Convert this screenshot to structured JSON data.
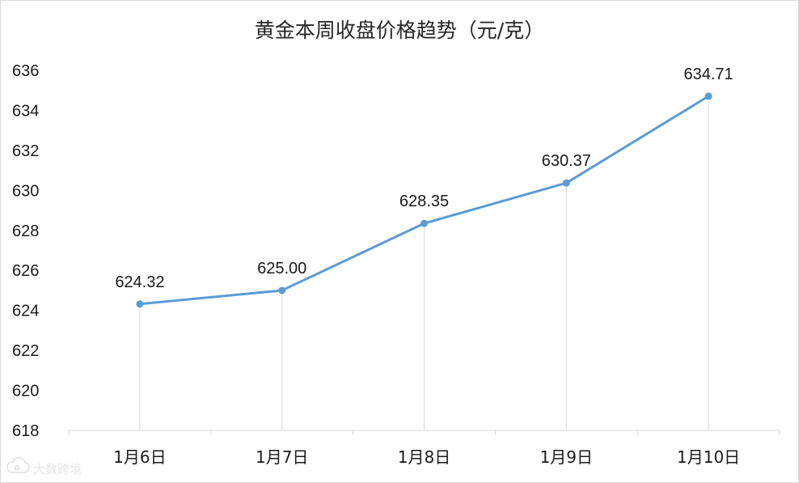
{
  "chart_data": {
    "type": "line",
    "title": "黄金本周收盘价格趋势（元/克）",
    "xlabel": "",
    "ylabel": "",
    "categories": [
      "1月6日",
      "1月7日",
      "1月8日",
      "1月9日",
      "1月10日"
    ],
    "series": [
      {
        "values": [
          624.32,
          625.0,
          628.35,
          630.37,
          634.71
        ]
      }
    ],
    "data_labels": [
      "624.32",
      "625.00",
      "628.35",
      "630.37",
      "634.71"
    ],
    "ylim": [
      618,
      636
    ],
    "yticks": [
      618,
      620,
      622,
      624,
      626,
      628,
      630,
      632,
      634,
      636
    ],
    "grid": false,
    "drop_lines": true,
    "legend": "none",
    "colors": {
      "line": "#5b9bd5",
      "drop_line": "#d9d9d9",
      "axis": "#d9d9d9"
    }
  },
  "watermark": {
    "icon": "cloud-logo-icon",
    "text": "大数跨境"
  }
}
